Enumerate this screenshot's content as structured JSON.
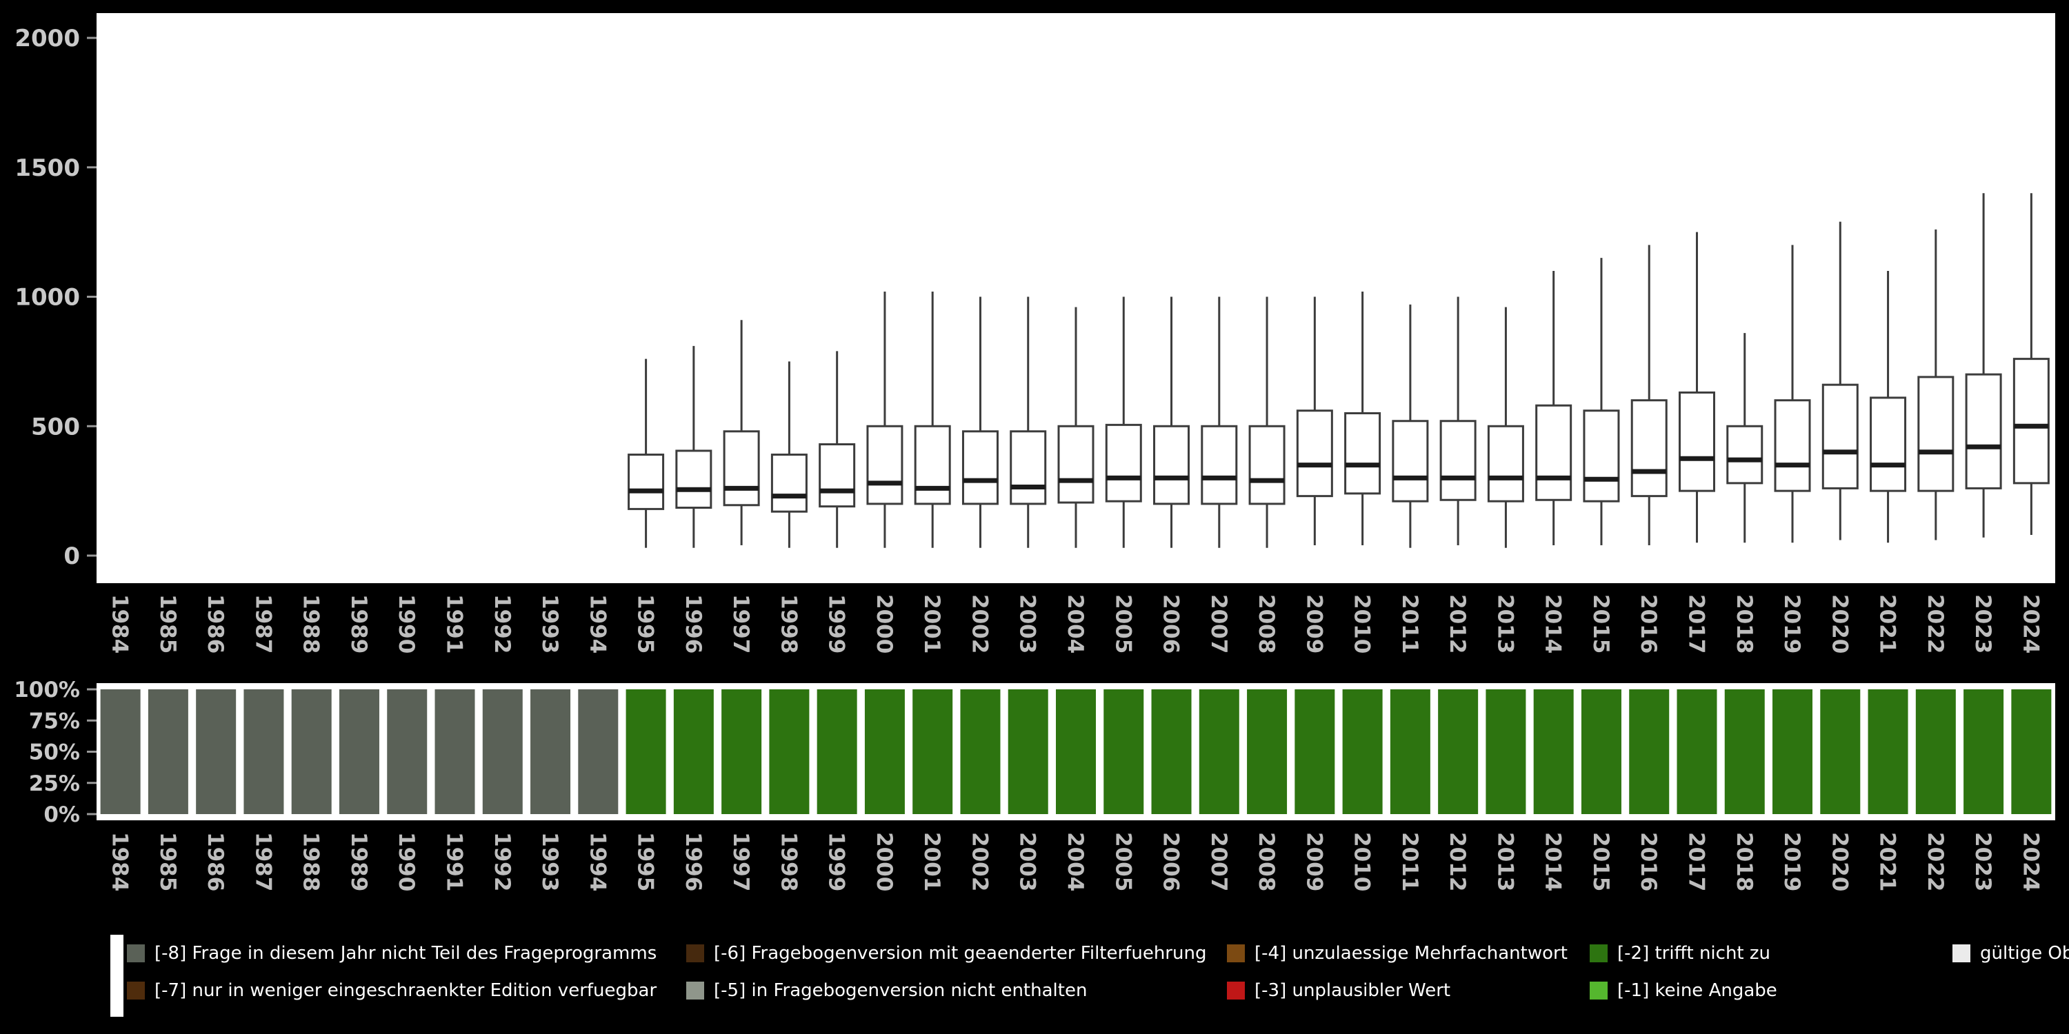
{
  "figure": {
    "background": "#000000",
    "plot_background": "#ffffff",
    "axis_text_color": "#c9c9c9",
    "box_stroke_color": "#3c3c3c",
    "median_color": "#1b1b1b"
  },
  "chart_data": [
    {
      "type": "boxplot",
      "title": "",
      "xlabel": "",
      "ylabel": "",
      "ylim": [
        0,
        2000
      ],
      "yticks": [
        0,
        500,
        1000,
        1500,
        2000
      ],
      "categories": [
        "1984",
        "1985",
        "1986",
        "1987",
        "1988",
        "1989",
        "1990",
        "1991",
        "1992",
        "1993",
        "1994",
        "1995",
        "1996",
        "1997",
        "1998",
        "1999",
        "2000",
        "2001",
        "2002",
        "2003",
        "2004",
        "2005",
        "2006",
        "2007",
        "2008",
        "2009",
        "2010",
        "2011",
        "2012",
        "2013",
        "2014",
        "2015",
        "2016",
        "2017",
        "2018",
        "2019",
        "2020",
        "2021",
        "2022",
        "2023",
        "2024"
      ],
      "boxes": [
        {
          "year": "1995",
          "low": 30,
          "q1": 180,
          "median": 250,
          "q3": 390,
          "high": 760
        },
        {
          "year": "1996",
          "low": 30,
          "q1": 185,
          "median": 255,
          "q3": 405,
          "high": 810
        },
        {
          "year": "1997",
          "low": 40,
          "q1": 195,
          "median": 260,
          "q3": 480,
          "high": 910
        },
        {
          "year": "1998",
          "low": 30,
          "q1": 170,
          "median": 230,
          "q3": 390,
          "high": 750
        },
        {
          "year": "1999",
          "low": 30,
          "q1": 190,
          "median": 250,
          "q3": 430,
          "high": 790
        },
        {
          "year": "2000",
          "low": 30,
          "q1": 200,
          "median": 280,
          "q3": 500,
          "high": 1020
        },
        {
          "year": "2001",
          "low": 30,
          "q1": 200,
          "median": 260,
          "q3": 500,
          "high": 1020
        },
        {
          "year": "2002",
          "low": 30,
          "q1": 200,
          "median": 290,
          "q3": 480,
          "high": 1000
        },
        {
          "year": "2003",
          "low": 30,
          "q1": 200,
          "median": 265,
          "q3": 480,
          "high": 1000
        },
        {
          "year": "2004",
          "low": 30,
          "q1": 205,
          "median": 290,
          "q3": 500,
          "high": 960
        },
        {
          "year": "2005",
          "low": 30,
          "q1": 210,
          "median": 300,
          "q3": 505,
          "high": 1000
        },
        {
          "year": "2006",
          "low": 30,
          "q1": 200,
          "median": 300,
          "q3": 500,
          "high": 1000
        },
        {
          "year": "2007",
          "low": 30,
          "q1": 200,
          "median": 300,
          "q3": 500,
          "high": 1000
        },
        {
          "year": "2008",
          "low": 30,
          "q1": 200,
          "median": 290,
          "q3": 500,
          "high": 1000
        },
        {
          "year": "2009",
          "low": 40,
          "q1": 230,
          "median": 350,
          "q3": 560,
          "high": 1000
        },
        {
          "year": "2010",
          "low": 40,
          "q1": 240,
          "median": 350,
          "q3": 550,
          "high": 1020
        },
        {
          "year": "2011",
          "low": 30,
          "q1": 210,
          "median": 300,
          "q3": 520,
          "high": 970
        },
        {
          "year": "2012",
          "low": 40,
          "q1": 215,
          "median": 300,
          "q3": 520,
          "high": 1000
        },
        {
          "year": "2013",
          "low": 30,
          "q1": 210,
          "median": 300,
          "q3": 500,
          "high": 960
        },
        {
          "year": "2014",
          "low": 40,
          "q1": 215,
          "median": 300,
          "q3": 580,
          "high": 1100
        },
        {
          "year": "2015",
          "low": 40,
          "q1": 210,
          "median": 295,
          "q3": 560,
          "high": 1150
        },
        {
          "year": "2016",
          "low": 40,
          "q1": 230,
          "median": 325,
          "q3": 600,
          "high": 1200
        },
        {
          "year": "2017",
          "low": 50,
          "q1": 250,
          "median": 375,
          "q3": 630,
          "high": 1250
        },
        {
          "year": "2018",
          "low": 50,
          "q1": 280,
          "median": 370,
          "q3": 500,
          "high": 860
        },
        {
          "year": "2019",
          "low": 50,
          "q1": 250,
          "median": 350,
          "q3": 600,
          "high": 1200
        },
        {
          "year": "2020",
          "low": 60,
          "q1": 260,
          "median": 400,
          "q3": 660,
          "high": 1290
        },
        {
          "year": "2021",
          "low": 50,
          "q1": 250,
          "median": 350,
          "q3": 610,
          "high": 1100
        },
        {
          "year": "2022",
          "low": 60,
          "q1": 250,
          "median": 400,
          "q3": 690,
          "high": 1260
        },
        {
          "year": "2023",
          "low": 70,
          "q1": 260,
          "median": 420,
          "q3": 700,
          "high": 1400
        },
        {
          "year": "2024",
          "low": 80,
          "q1": 280,
          "median": 500,
          "q3": 760,
          "high": 1400
        }
      ]
    },
    {
      "type": "bar",
      "stacked": true,
      "unit": "percent",
      "title": "",
      "xlabel": "",
      "ylabel": "",
      "ylim": [
        0,
        100
      ],
      "yticks": [
        "0%",
        "25%",
        "50%",
        "75%",
        "100%"
      ],
      "categories": [
        "1984",
        "1985",
        "1986",
        "1987",
        "1988",
        "1989",
        "1990",
        "1991",
        "1992",
        "1993",
        "1994",
        "1995",
        "1996",
        "1997",
        "1998",
        "1999",
        "2000",
        "2001",
        "2002",
        "2003",
        "2004",
        "2005",
        "2006",
        "2007",
        "2008",
        "2009",
        "2010",
        "2011",
        "2012",
        "2013",
        "2014",
        "2015",
        "2016",
        "2017",
        "2018",
        "2019",
        "2020",
        "2021",
        "2022",
        "2023",
        "2024"
      ],
      "series": [
        {
          "name": "[-8] Frage in diesem Jahr nicht Teil des Frageprogramms",
          "color": "#5a6157",
          "values": [
            100,
            100,
            100,
            100,
            100,
            100,
            100,
            100,
            100,
            100,
            100,
            0,
            0,
            0,
            0,
            0,
            0,
            0,
            0,
            0,
            0,
            0,
            0,
            0,
            0,
            0,
            0,
            0,
            0,
            0,
            0,
            0,
            0,
            0,
            0,
            0,
            0,
            0,
            0,
            0,
            0
          ]
        },
        {
          "name": "[-2] trifft nicht zu",
          "color": "#2d7410",
          "values": [
            0,
            0,
            0,
            0,
            0,
            0,
            0,
            0,
            0,
            0,
            0,
            100,
            100,
            100,
            100,
            100,
            100,
            100,
            100,
            100,
            100,
            100,
            100,
            100,
            100,
            100,
            100,
            100,
            100,
            100,
            100,
            100,
            100,
            100,
            100,
            100,
            100,
            100,
            100,
            100,
            100
          ]
        }
      ]
    }
  ],
  "legend": {
    "items": [
      {
        "label": "[-8] Frage in diesem Jahr nicht Teil des Frageprogramms",
        "color": "#5a6157",
        "col": 0,
        "row": 0
      },
      {
        "label": "[-7] nur in weniger eingeschraenkter Edition verfuegbar",
        "color": "#4f2c0c",
        "col": 0,
        "row": 1
      },
      {
        "label": "[-6] Fragebogenversion mit geaenderter Filterfuehrung",
        "color": "#46290e",
        "col": 1,
        "row": 0
      },
      {
        "label": "[-5] in Fragebogenversion nicht enthalten",
        "color": "#8f968b",
        "col": 1,
        "row": 1
      },
      {
        "label": "[-4] unzulaessige Mehrfachantwort",
        "color": "#7c4a12",
        "col": 2,
        "row": 0
      },
      {
        "label": "[-3] unplausibler Wert",
        "color": "#c01717",
        "col": 2,
        "row": 1
      },
      {
        "label": "[-2] trifft nicht zu",
        "color": "#2d7410",
        "col": 3,
        "row": 0
      },
      {
        "label": "[-1] keine Angabe",
        "color": "#55b72e",
        "col": 3,
        "row": 1
      },
      {
        "label": "gültige Observationen",
        "color": "#ebebeb",
        "col": 4,
        "row": 0
      }
    ]
  }
}
